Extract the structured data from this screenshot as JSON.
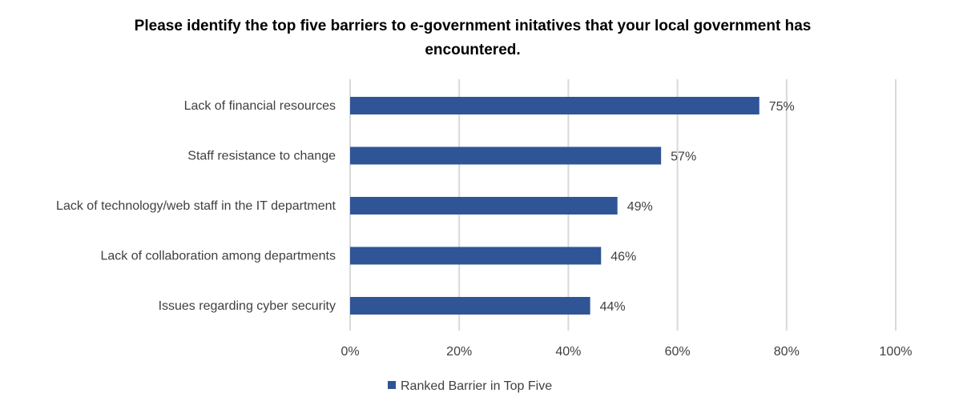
{
  "chart_data": {
    "type": "bar",
    "orientation": "horizontal",
    "title": "Please identify the top five barriers to e-government initatives that your local government has encountered.",
    "categories": [
      "Lack of financial resources",
      "Staff resistance to change",
      "Lack of technology/web staff in the IT department",
      "Lack of collaboration among departments",
      "Issues regarding cyber security"
    ],
    "series": [
      {
        "name": "Ranked Barrier in Top Five",
        "values": [
          75,
          57,
          49,
          46,
          44
        ],
        "data_labels": [
          "75%",
          "57%",
          "49%",
          "46%",
          "44%"
        ],
        "color": "#2F5597"
      }
    ],
    "x_ticks": [
      "0%",
      "20%",
      "40%",
      "60%",
      "80%",
      "100%"
    ],
    "xlim": [
      0,
      100
    ],
    "xlabel": "",
    "ylabel": "",
    "grid": "vertical",
    "legend_position": "bottom"
  }
}
